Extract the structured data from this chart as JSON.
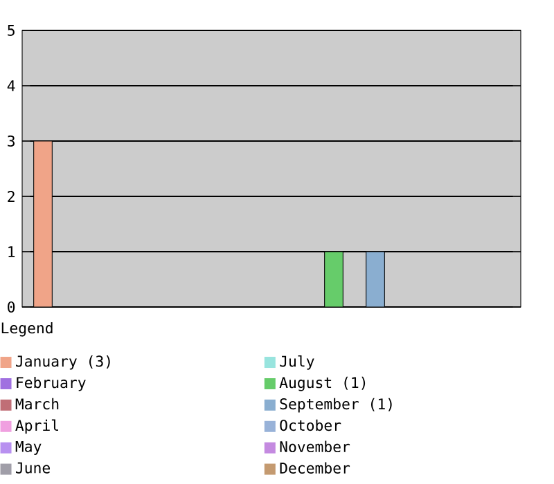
{
  "chart_data": {
    "type": "bar",
    "legend_title": "Legend",
    "legend": "bottom",
    "grid": "y",
    "categories": [
      null,
      null,
      null,
      null,
      null,
      null,
      null,
      null,
      null,
      null,
      null,
      null
    ],
    "ylim": [
      0,
      5
    ],
    "yticks": [
      0,
      1,
      2,
      3,
      4,
      5
    ],
    "tick_labels": "y",
    "series": [
      {
        "name": "January (3)",
        "color": "#f0a488",
        "values": [
          3,
          null,
          null,
          null,
          null,
          null,
          null,
          null,
          null,
          null,
          null,
          null
        ]
      },
      {
        "name": "February",
        "color": "#a070e0",
        "values": [
          null,
          0,
          null,
          null,
          null,
          null,
          null,
          null,
          null,
          null,
          null,
          null
        ]
      },
      {
        "name": "March",
        "color": "#c06e76",
        "values": [
          null,
          null,
          0,
          null,
          null,
          null,
          null,
          null,
          null,
          null,
          null,
          null
        ]
      },
      {
        "name": "April",
        "color": "#f0a0e0",
        "values": [
          null,
          null,
          null,
          0,
          null,
          null,
          null,
          null,
          null,
          null,
          null,
          null
        ]
      },
      {
        "name": "May",
        "color": "#b890f0",
        "values": [
          null,
          null,
          null,
          null,
          0,
          null,
          null,
          null,
          null,
          null,
          null,
          null
        ]
      },
      {
        "name": "June",
        "color": "#a09ea8",
        "values": [
          null,
          null,
          null,
          null,
          null,
          0,
          null,
          null,
          null,
          null,
          null,
          null
        ]
      },
      {
        "name": "July",
        "color": "#98e4de",
        "values": [
          null,
          null,
          null,
          null,
          null,
          null,
          0,
          null,
          null,
          null,
          null,
          null
        ]
      },
      {
        "name": "August (1)",
        "color": "#66cc6a",
        "values": [
          null,
          null,
          null,
          null,
          null,
          null,
          null,
          1,
          null,
          null,
          null,
          null
        ]
      },
      {
        "name": "September (1)",
        "color": "#8aaed0",
        "values": [
          null,
          null,
          null,
          null,
          null,
          null,
          null,
          null,
          1,
          null,
          null,
          null
        ]
      },
      {
        "name": "October",
        "color": "#98b2d8",
        "values": [
          null,
          null,
          null,
          null,
          null,
          null,
          null,
          null,
          null,
          0,
          null,
          null
        ]
      },
      {
        "name": "November",
        "color": "#c48ae0",
        "values": [
          null,
          null,
          null,
          null,
          null,
          null,
          null,
          null,
          null,
          null,
          0,
          null
        ]
      },
      {
        "name": "December",
        "color": "#c49a70",
        "values": [
          null,
          null,
          null,
          null,
          null,
          null,
          null,
          null,
          null,
          null,
          null,
          0
        ]
      }
    ]
  }
}
